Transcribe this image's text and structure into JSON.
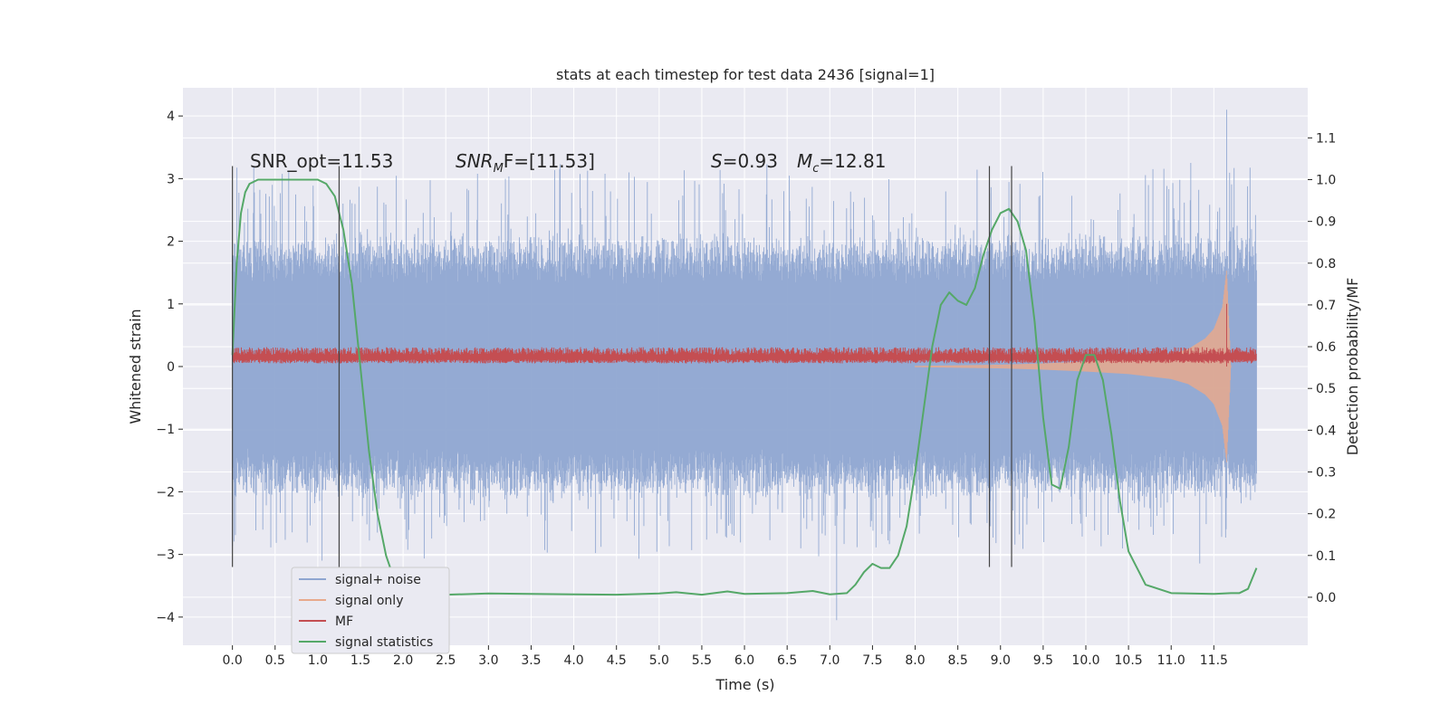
{
  "chart_data": {
    "type": "line",
    "title": "stats at each timestep for test data 2436 [signal=1]",
    "xlabel": "Time (s)",
    "ylabel": "Whitened strain",
    "ylabel_right": "Detection probability/MF",
    "xlim": [
      -0.58,
      12.6
    ],
    "ylim": [
      -4.45,
      4.45
    ],
    "ylim_right": [
      -0.115,
      1.22
    ],
    "x_ticks": [
      0.0,
      0.5,
      1.0,
      1.5,
      2.0,
      2.5,
      3.0,
      3.5,
      4.0,
      4.5,
      5.0,
      5.5,
      6.0,
      6.5,
      7.0,
      7.5,
      8.0,
      8.5,
      9.0,
      9.5,
      10.0,
      10.5,
      11.0,
      11.5
    ],
    "x_tick_labels": [
      "0.0",
      "0.5",
      "1.0",
      "1.5",
      "2.0",
      "2.5",
      "3.0",
      "3.5",
      "4.0",
      "4.5",
      "5.0",
      "5.5",
      "6.0",
      "6.5",
      "7.0",
      "7.5",
      "8.0",
      "8.5",
      "9.0",
      "9.5",
      "10.0",
      "10.5",
      "11.0",
      "11.5"
    ],
    "y_ticks": [
      -4,
      -3,
      -2,
      -1,
      0,
      1,
      2,
      3,
      4
    ],
    "y_tick_labels": [
      "−4",
      "−3",
      "−2",
      "−1",
      "0",
      "1",
      "2",
      "3",
      "4"
    ],
    "y_right_ticks": [
      0.0,
      0.1,
      0.2,
      0.3,
      0.4,
      0.5,
      0.6,
      0.7,
      0.8,
      0.9,
      1.0,
      1.1
    ],
    "y_right_tick_labels": [
      "0.0",
      "0.1",
      "0.2",
      "0.3",
      "0.4",
      "0.5",
      "0.6",
      "0.7",
      "0.8",
      "0.9",
      "1.0",
      "1.1"
    ],
    "grid": true,
    "legend_position": "bottom-left",
    "annotations": {
      "snr_opt": "SNR_opt=11.53",
      "snr_mf_base": "SNR",
      "snr_mf_sub": "M",
      "snr_mf_tail": "F=[11.53]",
      "s_var": "S",
      "s_value": "=0.93",
      "mc_var": "M",
      "mc_sub": "c",
      "mc_value": "=12.81"
    },
    "vertical_lines_x": [
      0.0,
      1.25,
      8.87,
      9.13
    ],
    "vertical_lines_ylim": [
      -3.2,
      3.2
    ],
    "series": [
      {
        "name": "signal+ noise",
        "color": "#8fa6d1",
        "axis": "left",
        "style": "noise",
        "x_range": [
          0.0,
          12.0
        ],
        "amplitude": 1.3,
        "peaks": [
          [
            11.65,
            4.1
          ],
          [
            11.65,
            -2.1
          ],
          [
            7.08,
            -4.05
          ],
          [
            0.25,
            3.2
          ],
          [
            1.05,
            -3.1
          ]
        ]
      },
      {
        "name": "signal only",
        "color": "#e8a98c",
        "axis": "left",
        "style": "chirp",
        "x": [
          8.0,
          9.0,
          9.5,
          10.0,
          10.5,
          11.0,
          11.2,
          11.4,
          11.5,
          11.6,
          11.65,
          11.7
        ],
        "envelope": [
          0.01,
          0.03,
          0.05,
          0.08,
          0.12,
          0.2,
          0.28,
          0.45,
          0.6,
          0.95,
          1.55,
          0.0
        ]
      },
      {
        "name": "MF",
        "color": "#c44e52",
        "axis": "left",
        "style": "band",
        "x_range": [
          0.0,
          12.0
        ],
        "low": 0.05,
        "high": 0.25,
        "spike": [
          11.65,
          1.0
        ]
      },
      {
        "name": "signal statistics",
        "color": "#55a868",
        "axis": "right",
        "style": "line",
        "x": [
          0.0,
          0.05,
          0.1,
          0.15,
          0.2,
          0.3,
          0.5,
          0.8,
          1.0,
          1.1,
          1.2,
          1.3,
          1.4,
          1.5,
          1.6,
          1.7,
          1.8,
          1.9,
          2.0,
          2.2,
          2.5,
          3.0,
          3.5,
          4.0,
          4.5,
          5.0,
          5.2,
          5.5,
          5.8,
          6.0,
          6.5,
          6.8,
          7.0,
          7.2,
          7.3,
          7.4,
          7.5,
          7.6,
          7.7,
          7.8,
          7.9,
          8.0,
          8.1,
          8.2,
          8.3,
          8.4,
          8.5,
          8.6,
          8.7,
          8.8,
          8.9,
          9.0,
          9.1,
          9.2,
          9.3,
          9.4,
          9.5,
          9.6,
          9.7,
          9.8,
          9.9,
          10.0,
          10.1,
          10.2,
          10.3,
          10.4,
          10.5,
          10.7,
          11.0,
          11.5,
          11.7,
          11.8,
          11.9,
          12.0
        ],
        "y": [
          0.58,
          0.8,
          0.92,
          0.97,
          0.99,
          1.0,
          1.0,
          1.0,
          1.0,
          0.99,
          0.96,
          0.88,
          0.75,
          0.55,
          0.35,
          0.2,
          0.1,
          0.04,
          0.015,
          0.01,
          0.006,
          0.009,
          0.008,
          0.007,
          0.006,
          0.009,
          0.012,
          0.006,
          0.014,
          0.008,
          0.01,
          0.015,
          0.007,
          0.01,
          0.03,
          0.06,
          0.08,
          0.07,
          0.07,
          0.1,
          0.17,
          0.3,
          0.45,
          0.6,
          0.7,
          0.73,
          0.71,
          0.7,
          0.74,
          0.82,
          0.88,
          0.92,
          0.93,
          0.9,
          0.83,
          0.66,
          0.43,
          0.27,
          0.26,
          0.36,
          0.52,
          0.58,
          0.58,
          0.52,
          0.39,
          0.23,
          0.11,
          0.03,
          0.01,
          0.008,
          0.01,
          0.01,
          0.02,
          0.07
        ]
      }
    ]
  }
}
